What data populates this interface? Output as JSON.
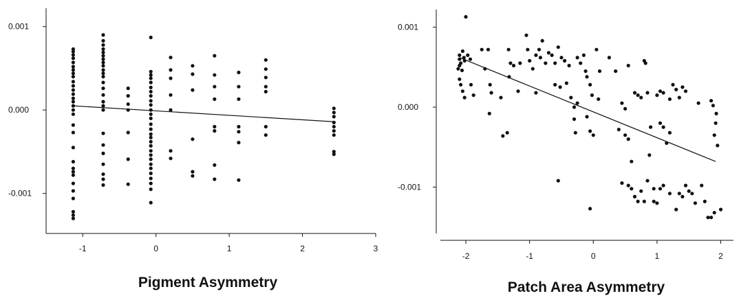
{
  "chart_data": [
    {
      "type": "scatter",
      "title": "",
      "xlabel": "Pigment Asymmetry",
      "ylabel": "",
      "xlim": [
        -1.5,
        3
      ],
      "ylim": [
        -0.00148,
        0.00122
      ],
      "x_ticks": [
        -1,
        0,
        1,
        2,
        3
      ],
      "x_tick_labels": [
        "-1",
        "0",
        "1",
        "2",
        "3"
      ],
      "y_ticks": [
        0.001,
        0.0,
        -0.001
      ],
      "y_tick_labels": [
        "0.001",
        "0.000",
        "-0.001"
      ],
      "grid": false,
      "fit_line": {
        "x": [
          -1.13,
          2.43
        ],
        "y": [
          5e-05,
          -0.00014
        ]
      },
      "points": [
        [
          -1.13,
          0.00073
        ],
        [
          -1.13,
          0.0007
        ],
        [
          -1.13,
          0.00066
        ],
        [
          -1.13,
          0.00062
        ],
        [
          -1.13,
          0.00057
        ],
        [
          -1.13,
          0.00052
        ],
        [
          -1.13,
          0.00048
        ],
        [
          -1.13,
          0.00044
        ],
        [
          -1.13,
          0.0004
        ],
        [
          -1.13,
          0.00034
        ],
        [
          -1.13,
          0.00029
        ],
        [
          -1.13,
          0.00024
        ],
        [
          -1.13,
          0.00019
        ],
        [
          -1.13,
          0.00014
        ],
        [
          -1.13,
          0.0001
        ],
        [
          -1.13,
          5e-05
        ],
        [
          -1.13,
          0.0
        ],
        [
          -1.13,
          -5e-05
        ],
        [
          -1.13,
          -0.00018
        ],
        [
          -1.13,
          -0.00027
        ],
        [
          -1.13,
          -0.00045
        ],
        [
          -1.13,
          -0.00062
        ],
        [
          -1.13,
          -0.0007
        ],
        [
          -1.13,
          -0.00074
        ],
        [
          -1.13,
          -0.00078
        ],
        [
          -1.13,
          -0.00088
        ],
        [
          -1.13,
          -0.00097
        ],
        [
          -1.13,
          -0.00106
        ],
        [
          -1.13,
          -0.00122
        ],
        [
          -1.13,
          -0.00126
        ],
        [
          -1.13,
          -0.0013
        ],
        [
          -0.72,
          0.0009
        ],
        [
          -0.72,
          0.00083
        ],
        [
          -0.72,
          0.00078
        ],
        [
          -0.72,
          0.00073
        ],
        [
          -0.72,
          0.00069
        ],
        [
          -0.72,
          0.00065
        ],
        [
          -0.72,
          0.00061
        ],
        [
          -0.72,
          0.00057
        ],
        [
          -0.72,
          0.00053
        ],
        [
          -0.72,
          0.00048
        ],
        [
          -0.72,
          0.00044
        ],
        [
          -0.72,
          0.0004
        ],
        [
          -0.72,
          0.00033
        ],
        [
          -0.72,
          0.00026
        ],
        [
          -0.72,
          0.00018
        ],
        [
          -0.72,
          0.0001
        ],
        [
          -0.72,
          5e-05
        ],
        [
          -0.72,
          0.0
        ],
        [
          -0.72,
          -0.00028
        ],
        [
          -0.72,
          -0.00042
        ],
        [
          -0.72,
          -0.00052
        ],
        [
          -0.72,
          -0.00065
        ],
        [
          -0.72,
          -0.00077
        ],
        [
          -0.72,
          -0.00083
        ],
        [
          -0.72,
          -0.0009
        ],
        [
          -0.38,
          0.00026
        ],
        [
          -0.38,
          0.00017
        ],
        [
          -0.38,
          7e-05
        ],
        [
          -0.38,
          0.0
        ],
        [
          -0.38,
          -0.00027
        ],
        [
          -0.38,
          -0.00059
        ],
        [
          -0.38,
          -0.00089
        ],
        [
          -0.07,
          0.00087
        ],
        [
          -0.07,
          0.00046
        ],
        [
          -0.07,
          0.00042
        ],
        [
          -0.07,
          0.00038
        ],
        [
          -0.07,
          0.00033
        ],
        [
          -0.07,
          0.00027
        ],
        [
          -0.07,
          0.00022
        ],
        [
          -0.07,
          0.00017
        ],
        [
          -0.07,
          0.00011
        ],
        [
          -0.07,
          6e-05
        ],
        [
          -0.07,
          0.0
        ],
        [
          -0.07,
          -5e-05
        ],
        [
          -0.07,
          -0.0001
        ],
        [
          -0.07,
          -0.00017
        ],
        [
          -0.07,
          -0.00023
        ],
        [
          -0.07,
          -0.00029
        ],
        [
          -0.07,
          -0.00033
        ],
        [
          -0.07,
          -0.00038
        ],
        [
          -0.07,
          -0.00043
        ],
        [
          -0.07,
          -0.00049
        ],
        [
          -0.07,
          -0.00054
        ],
        [
          -0.07,
          -0.00059
        ],
        [
          -0.07,
          -0.00065
        ],
        [
          -0.07,
          -0.0007
        ],
        [
          -0.07,
          -0.00076
        ],
        [
          -0.07,
          -0.00082
        ],
        [
          -0.07,
          -0.00088
        ],
        [
          -0.07,
          -0.00095
        ],
        [
          -0.07,
          -0.00111
        ],
        [
          0.2,
          0.00063
        ],
        [
          0.2,
          0.00048
        ],
        [
          0.2,
          0.00038
        ],
        [
          0.2,
          0.00018
        ],
        [
          0.2,
          0.0
        ],
        [
          0.2,
          -0.00049
        ],
        [
          0.2,
          -0.00058
        ],
        [
          0.5,
          0.00053
        ],
        [
          0.5,
          0.00043
        ],
        [
          0.5,
          0.00024
        ],
        [
          0.5,
          -0.00035
        ],
        [
          0.5,
          -0.00074
        ],
        [
          0.5,
          -0.00079
        ],
        [
          0.8,
          0.00065
        ],
        [
          0.8,
          0.00042
        ],
        [
          0.8,
          0.00028
        ],
        [
          0.8,
          0.00013
        ],
        [
          0.8,
          -0.0002
        ],
        [
          0.8,
          -0.00025
        ],
        [
          0.8,
          -0.00066
        ],
        [
          0.8,
          -0.00083
        ],
        [
          1.13,
          0.00045
        ],
        [
          1.13,
          0.00028
        ],
        [
          1.13,
          0.00013
        ],
        [
          1.13,
          -0.0002
        ],
        [
          1.13,
          -0.00026
        ],
        [
          1.13,
          -0.00039
        ],
        [
          1.13,
          -0.00084
        ],
        [
          1.5,
          0.0006
        ],
        [
          1.5,
          0.00049
        ],
        [
          1.5,
          0.00039
        ],
        [
          1.5,
          0.00028
        ],
        [
          1.5,
          0.00022
        ],
        [
          1.5,
          -0.0002
        ],
        [
          1.5,
          -0.0003
        ],
        [
          2.43,
          2e-05
        ],
        [
          2.43,
          -3e-05
        ],
        [
          2.43,
          -8e-05
        ],
        [
          2.43,
          -0.00015
        ],
        [
          2.43,
          -0.0002
        ],
        [
          2.43,
          -0.00025
        ],
        [
          2.43,
          -0.0003
        ],
        [
          2.43,
          -0.0005
        ],
        [
          2.43,
          -0.00053
        ]
      ]
    },
    {
      "type": "scatter",
      "title": "",
      "xlabel": "Patch Area Asymmetry",
      "ylabel": "",
      "xlim": [
        -2.4,
        2.2
      ],
      "ylim": [
        -0.00158,
        0.00122
      ],
      "x_ticks": [
        -2,
        -1,
        0,
        1,
        2
      ],
      "x_tick_labels": [
        "-2",
        "-1",
        "0",
        "1",
        "2"
      ],
      "y_ticks": [
        0.001,
        0.0,
        -0.001
      ],
      "y_tick_labels": [
        "0.001",
        "0.000",
        "-0.001"
      ],
      "grid": false,
      "fit_line": {
        "x": [
          -2.1,
          1.92
        ],
        "y": [
          0.00062,
          -0.00068
        ]
      },
      "points": [
        [
          -2.1,
          0.00065
        ],
        [
          -2.1,
          0.0006
        ],
        [
          -2.08,
          0.00055
        ],
        [
          -2.05,
          0.0007
        ],
        [
          -2.03,
          0.00062
        ],
        [
          -2.1,
          0.00052
        ],
        [
          -2.12,
          0.00048
        ],
        [
          -2.06,
          0.00046
        ],
        [
          -2.0,
          0.00113
        ],
        [
          -2.02,
          0.00058
        ],
        [
          -1.97,
          0.00065
        ],
        [
          -1.93,
          0.0006
        ],
        [
          -2.1,
          0.00035
        ],
        [
          -2.08,
          0.00028
        ],
        [
          -2.05,
          0.0002
        ],
        [
          -2.02,
          0.00012
        ],
        [
          -1.92,
          0.00028
        ],
        [
          -1.88,
          0.00015
        ],
        [
          -1.75,
          0.00072
        ],
        [
          -1.65,
          0.00072
        ],
        [
          -1.62,
          0.00028
        ],
        [
          -1.7,
          0.00048
        ],
        [
          -1.63,
          -8e-05
        ],
        [
          -1.6,
          0.00018
        ],
        [
          -1.45,
          0.00012
        ],
        [
          -1.42,
          -0.00036
        ],
        [
          -1.35,
          -0.00032
        ],
        [
          -1.33,
          0.00072
        ],
        [
          -1.3,
          0.00055
        ],
        [
          -1.25,
          0.00052
        ],
        [
          -1.32,
          0.00038
        ],
        [
          -1.18,
          0.0002
        ],
        [
          -1.15,
          0.00055
        ],
        [
          -1.05,
          0.0009
        ],
        [
          -1.03,
          0.00072
        ],
        [
          -1.0,
          0.00058
        ],
        [
          -0.95,
          0.00048
        ],
        [
          -0.9,
          0.00065
        ],
        [
          -0.85,
          0.00072
        ],
        [
          -0.83,
          0.00062
        ],
        [
          -0.8,
          0.00083
        ],
        [
          -0.75,
          0.00055
        ],
        [
          -0.7,
          0.00068
        ],
        [
          -0.65,
          0.00065
        ],
        [
          -0.6,
          0.00055
        ],
        [
          -0.55,
          0.00075
        ],
        [
          -0.5,
          0.00062
        ],
        [
          -0.52,
          0.00025
        ],
        [
          -0.45,
          0.00058
        ],
        [
          -0.42,
          0.0003
        ],
        [
          -0.9,
          0.00018
        ],
        [
          -0.6,
          0.00028
        ],
        [
          -0.55,
          -0.00092
        ],
        [
          -0.38,
          0.00052
        ],
        [
          -0.35,
          0.00012
        ],
        [
          -0.3,
          0.0
        ],
        [
          -0.25,
          0.00062
        ],
        [
          -0.2,
          0.00055
        ],
        [
          -0.15,
          0.00065
        ],
        [
          -0.12,
          0.00045
        ],
        [
          -0.1,
          0.00038
        ],
        [
          -0.05,
          0.00028
        ],
        [
          -0.02,
          0.00015
        ],
        [
          0.05,
          0.00072
        ],
        [
          0.1,
          0.00045
        ],
        [
          0.08,
          0.0001
        ],
        [
          -0.3,
          -0.00015
        ],
        [
          -0.28,
          -0.00032
        ],
        [
          -0.25,
          5e-05
        ],
        [
          -0.1,
          -0.00012
        ],
        [
          -0.05,
          -0.0003
        ],
        [
          0.0,
          -0.00035
        ],
        [
          -0.05,
          -0.00127
        ],
        [
          0.25,
          0.00062
        ],
        [
          0.35,
          0.00045
        ],
        [
          0.55,
          0.00052
        ],
        [
          0.45,
          5e-05
        ],
        [
          0.5,
          -2e-05
        ],
        [
          0.4,
          -0.00028
        ],
        [
          0.5,
          -0.00035
        ],
        [
          0.55,
          -0.0004
        ],
        [
          0.6,
          -0.00068
        ],
        [
          0.65,
          0.00018
        ],
        [
          0.7,
          0.00015
        ],
        [
          0.75,
          0.00012
        ],
        [
          0.8,
          0.00058
        ],
        [
          0.82,
          0.00055
        ],
        [
          0.85,
          0.00018
        ],
        [
          0.9,
          -0.00025
        ],
        [
          0.88,
          -0.0006
        ],
        [
          0.45,
          -0.00095
        ],
        [
          0.55,
          -0.00098
        ],
        [
          0.6,
          -0.00102
        ],
        [
          0.65,
          -0.00112
        ],
        [
          0.7,
          -0.00118
        ],
        [
          0.75,
          -0.00105
        ],
        [
          0.8,
          -0.00118
        ],
        [
          0.85,
          -0.00092
        ],
        [
          0.95,
          -0.00102
        ],
        [
          1.0,
          -0.0012
        ],
        [
          0.95,
          -0.00118
        ],
        [
          1.0,
          0.00015
        ],
        [
          1.05,
          0.0002
        ],
        [
          1.1,
          0.00018
        ],
        [
          1.2,
          0.0001
        ],
        [
          1.25,
          0.00028
        ],
        [
          1.3,
          0.00022
        ],
        [
          1.35,
          0.00012
        ],
        [
          1.4,
          0.00025
        ],
        [
          1.45,
          0.0002
        ],
        [
          1.05,
          -0.0002
        ],
        [
          1.1,
          -0.00025
        ],
        [
          1.15,
          -0.00045
        ],
        [
          1.2,
          -0.00032
        ],
        [
          1.05,
          -0.00102
        ],
        [
          1.1,
          -0.00098
        ],
        [
          1.2,
          -0.00108
        ],
        [
          1.3,
          -0.00128
        ],
        [
          1.35,
          -0.00108
        ],
        [
          1.4,
          -0.00112
        ],
        [
          1.45,
          -0.00098
        ],
        [
          1.5,
          -0.00105
        ],
        [
          1.55,
          -0.00108
        ],
        [
          1.6,
          -0.0012
        ],
        [
          1.65,
          5e-05
        ],
        [
          1.7,
          -0.00098
        ],
        [
          1.75,
          -0.00118
        ],
        [
          1.8,
          -0.00138
        ],
        [
          1.85,
          -0.00138
        ],
        [
          1.9,
          -0.00132
        ],
        [
          1.92,
          -0.0002
        ],
        [
          1.93,
          -8e-05
        ],
        [
          1.88,
          2e-05
        ],
        [
          1.85,
          8e-05
        ],
        [
          1.9,
          -0.00035
        ],
        [
          1.95,
          -0.00048
        ],
        [
          2.0,
          -0.00128
        ]
      ]
    }
  ]
}
